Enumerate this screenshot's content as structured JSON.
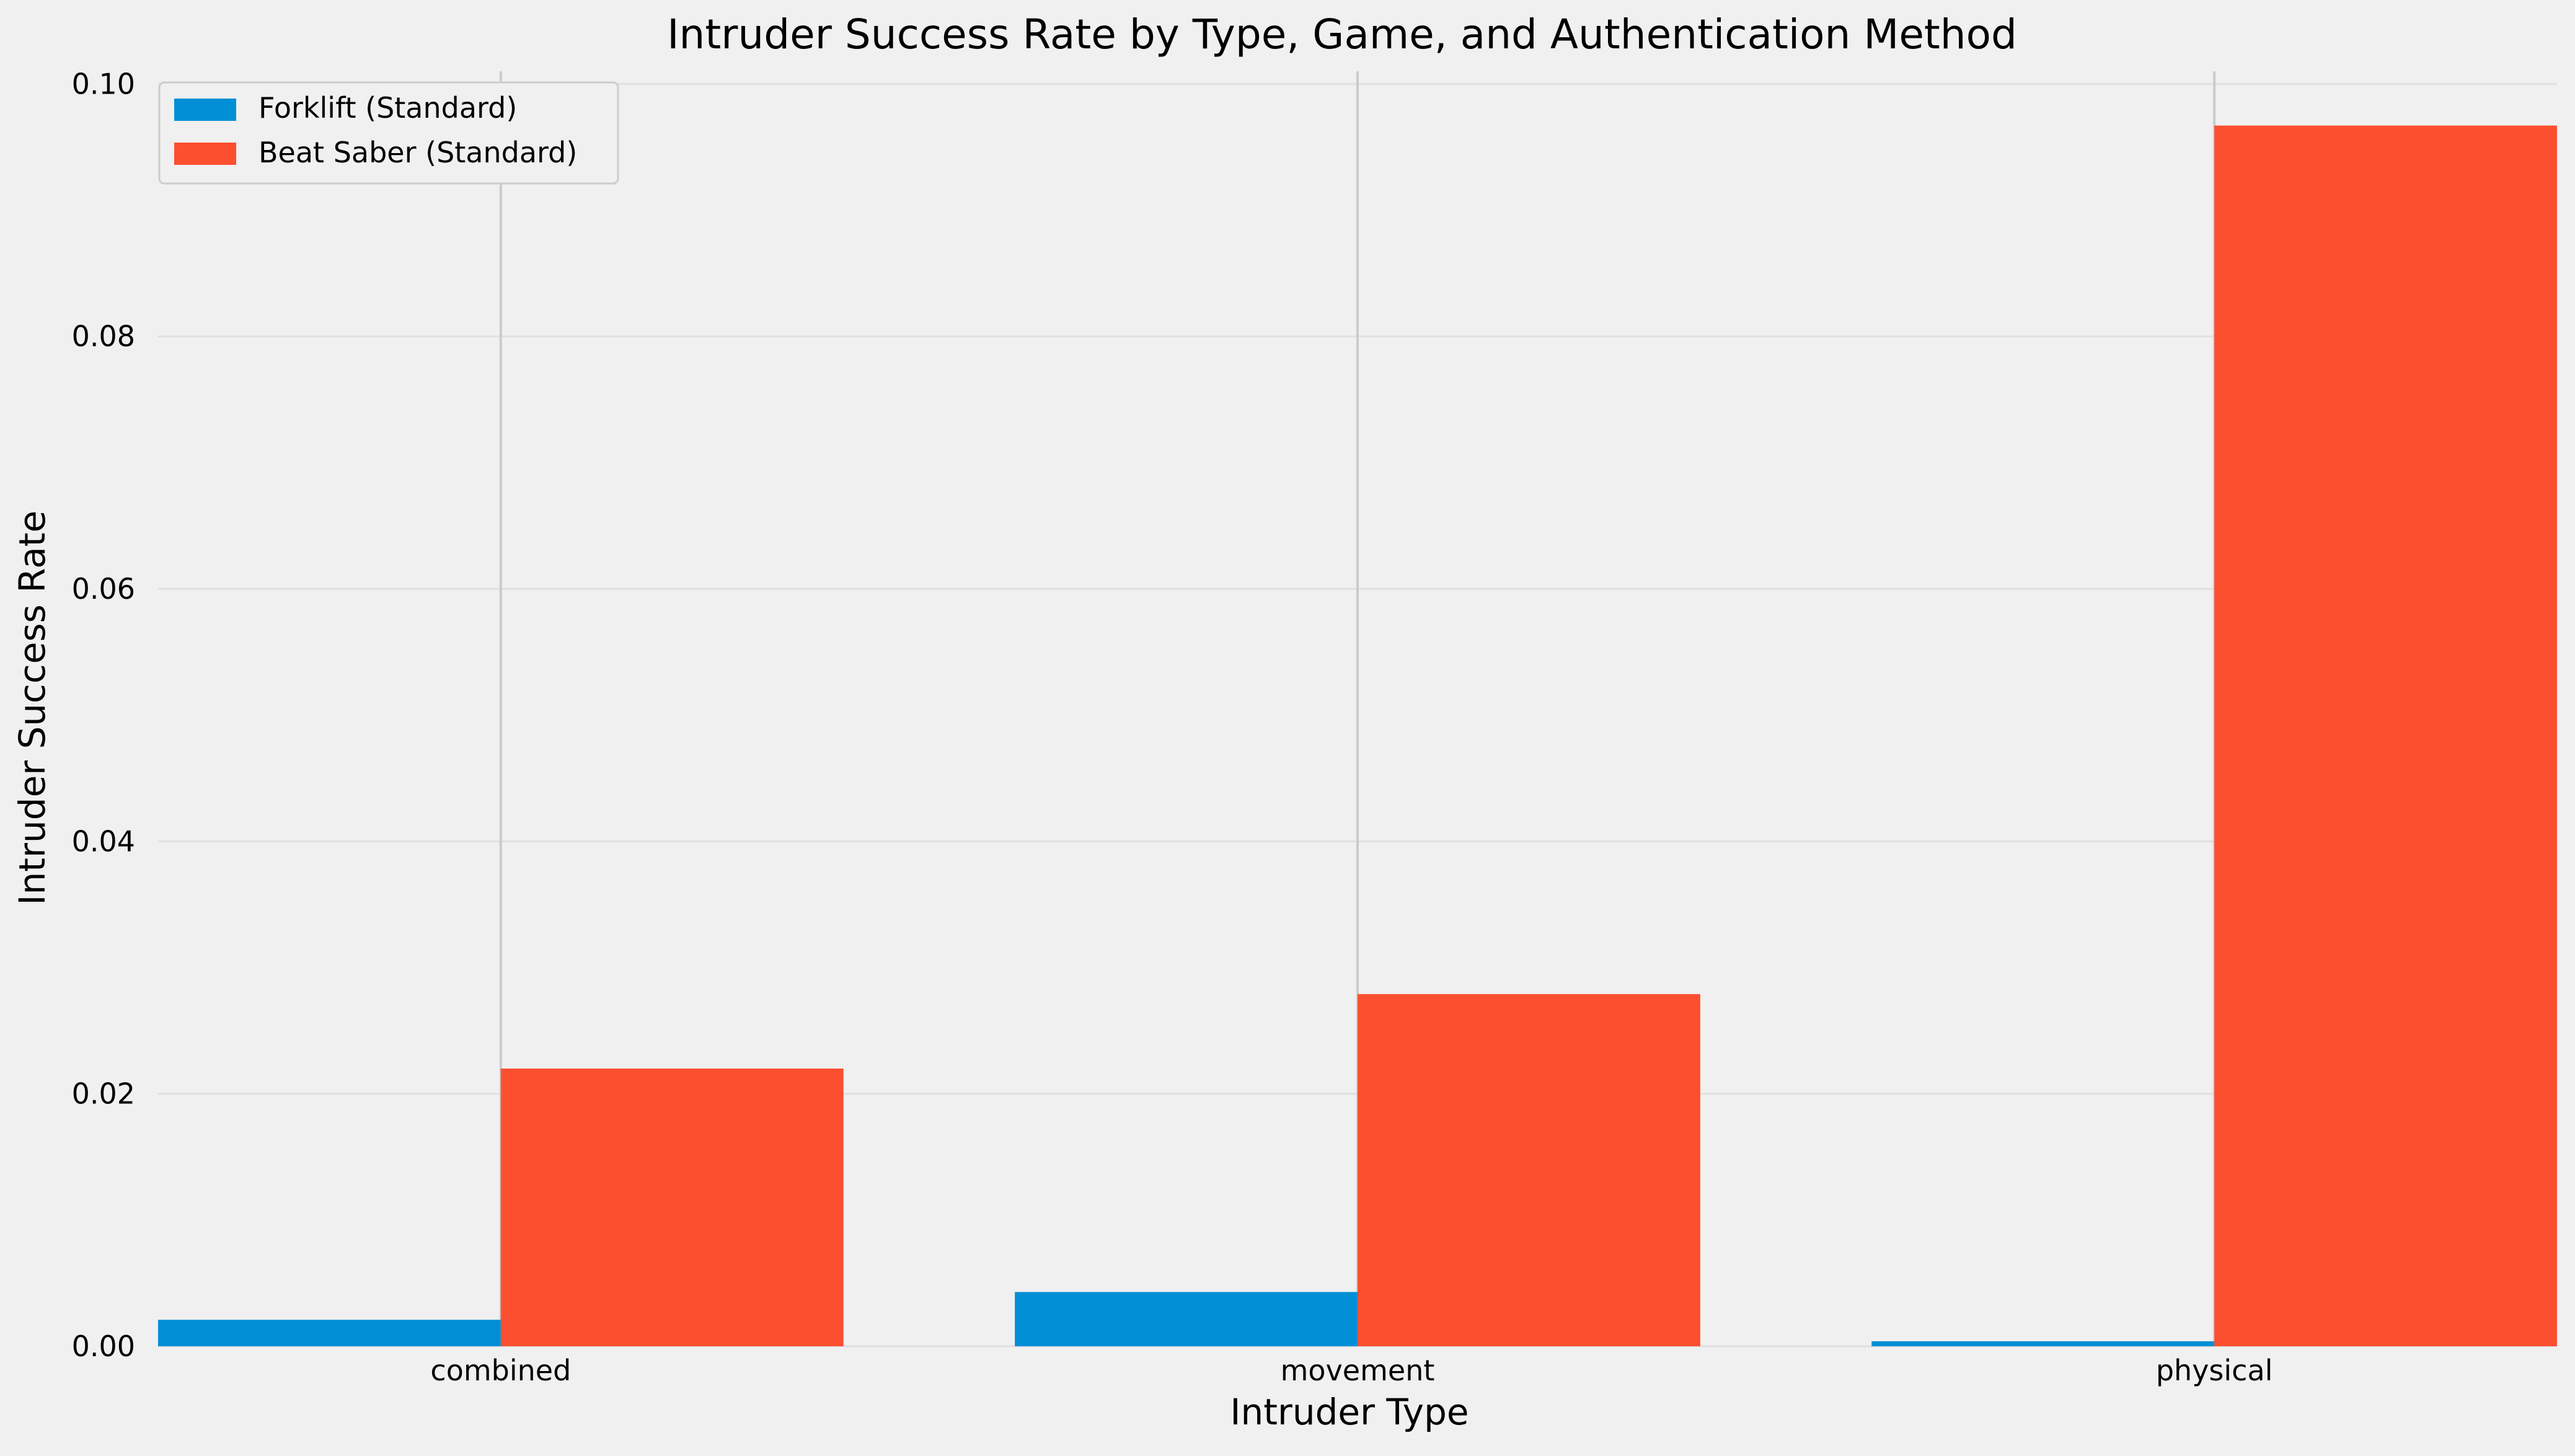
{
  "chart_data": {
    "type": "bar",
    "title": "Intruder Success Rate by Type, Game, and Authentication Method",
    "xlabel": "Intruder Type",
    "ylabel": "Intruder Success Rate",
    "categories": [
      "combined",
      "movement",
      "physical"
    ],
    "series": [
      {
        "name": "Forklift (Standard)",
        "color": "#008fd5",
        "values": [
          0.0021,
          0.0043,
          0.0004
        ]
      },
      {
        "name": "Beat Saber (Standard)",
        "color": "#fc4f30",
        "values": [
          0.022,
          0.0279,
          0.0967
        ]
      }
    ],
    "ylim": [
      0,
      0.101
    ],
    "yticks": [
      0.0,
      0.02,
      0.04,
      0.06,
      0.08,
      0.1
    ],
    "ytick_labels": [
      "0.00",
      "0.02",
      "0.04",
      "0.06",
      "0.08",
      "0.10"
    ],
    "grid": true,
    "legend_position": "top-left"
  },
  "style": {
    "background": "#f0f0f0",
    "grid_color": "#e0e0e0",
    "vgrid_color": "#cbcbcb",
    "legend_border": "#cccccc"
  }
}
